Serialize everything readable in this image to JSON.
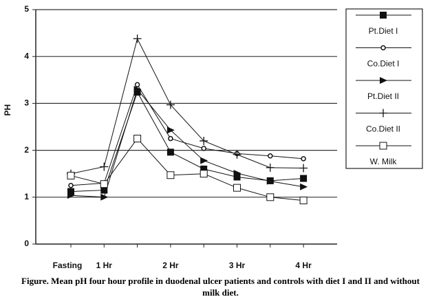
{
  "chart_data": {
    "type": "line",
    "ylabel": "PH",
    "caption": "Figure. Mean pH four hour profile in duodenal ulcer patients and controls with diet I and II and without milk diet.",
    "categories": [
      "Fasting",
      "1 Hr",
      null,
      "2 Hr",
      null,
      "3 Hr",
      null,
      "4 Hr"
    ],
    "ylim": [
      0,
      5
    ],
    "yticks": [
      0,
      1,
      2,
      3,
      4,
      5
    ],
    "grid": true,
    "legend": "right",
    "series": [
      {
        "name": "Pt.Diet I",
        "color": "#111111",
        "marker": "square",
        "values": [
          1.12,
          1.15,
          3.24,
          1.96,
          1.6,
          1.43,
          1.35,
          1.4
        ]
      },
      {
        "name": "Co.Diet I",
        "color": "#111111",
        "marker": "circle",
        "values": [
          1.25,
          1.3,
          3.4,
          2.25,
          2.04,
          1.93,
          1.88,
          1.82
        ]
      },
      {
        "name": "Pt.Diet II",
        "color": "#111111",
        "marker": "triangle",
        "values": [
          1.04,
          1.0,
          3.3,
          2.43,
          1.78,
          1.51,
          1.34,
          1.22
        ]
      },
      {
        "name": "Co.Diet II",
        "color": "#111111",
        "marker": "plus",
        "values": [
          1.5,
          1.65,
          4.38,
          2.97,
          2.2,
          1.91,
          1.63,
          1.62
        ]
      },
      {
        "name": "W. Milk",
        "color": "#111111",
        "marker": "open-square",
        "values": [
          1.46,
          1.28,
          2.25,
          1.47,
          1.5,
          1.2,
          1.0,
          0.93
        ]
      }
    ]
  }
}
